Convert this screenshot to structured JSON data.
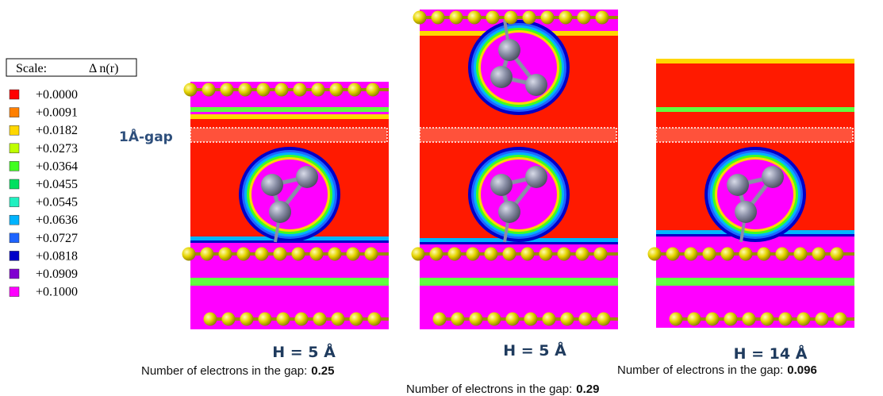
{
  "legend": {
    "title": "Scale:",
    "quantity": "Δ n(r)",
    "entries": [
      {
        "label": "+0.0000",
        "color": "#ff0000"
      },
      {
        "label": "+0.0091",
        "color": "#ff7f00"
      },
      {
        "label": "+0.0182",
        "color": "#ffd700"
      },
      {
        "label": "+0.0273",
        "color": "#bfff00"
      },
      {
        "label": "+0.0364",
        "color": "#40ff20"
      },
      {
        "label": "+0.0455",
        "color": "#00e060"
      },
      {
        "label": "+0.0545",
        "color": "#20f0c0"
      },
      {
        "label": "+0.0636",
        "color": "#00b4ff"
      },
      {
        "label": "+0.0727",
        "color": "#1e64ff"
      },
      {
        "label": "+0.0818",
        "color": "#0000c8"
      },
      {
        "label": "+0.0909",
        "color": "#8000d0"
      },
      {
        "label": "+0.1000",
        "color": "#ff00ff"
      }
    ]
  },
  "gap_label": "1Å-gap",
  "panels": [
    {
      "heading": "H = 5 Å",
      "caption": "Number of electrons in the gap:",
      "value": "0.25"
    },
    {
      "heading": "H = 5 Å",
      "caption": "Number of electrons in the gap:",
      "value": "0.29"
    },
    {
      "heading": "H = 14 Å",
      "caption": "Number of electrons in the gap:",
      "value": "0.096"
    }
  ]
}
